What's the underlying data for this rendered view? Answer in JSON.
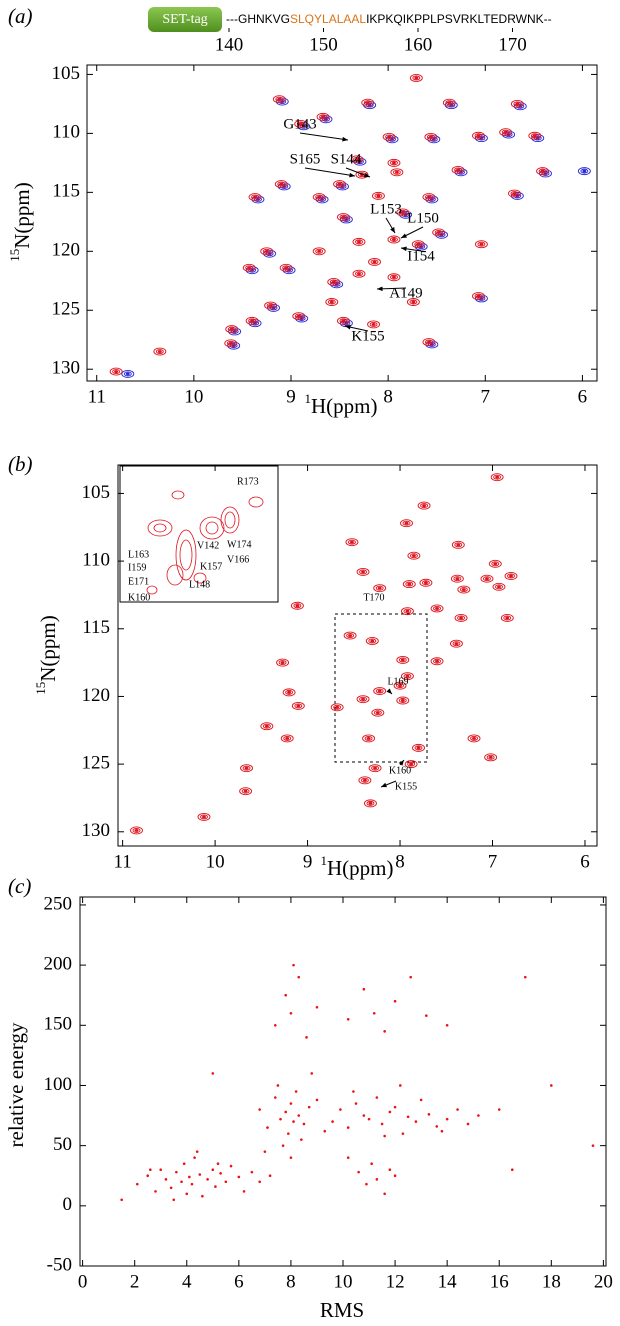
{
  "chart_data": [
    {
      "type": "spectrum",
      "panel_label": "(a)",
      "tag": "SET-tag",
      "sequence_parts": [
        "---GHNKVG",
        "SLQYLALAAL",
        "IKPKQIKPPLPSVRKLTEDRWNK--"
      ],
      "sequence_colors": [
        "#000000",
        "#d9731a",
        "#000000"
      ],
      "residue_ticks": [
        140,
        150,
        160,
        170
      ],
      "x_label_sup": "1",
      "x_label": "H(ppm)",
      "y_label_sup": "15",
      "y_label": "N(ppm)",
      "xlim": [
        11.1,
        5.85
      ],
      "ylim": [
        131.0,
        104.2
      ],
      "xticks": [
        11,
        10,
        9,
        8,
        7,
        6
      ],
      "yticks": [
        105,
        110,
        115,
        120,
        125,
        130
      ],
      "series": [
        {
          "color": "#2a2ad6",
          "x": [
            8.19,
            8.64,
            9.09,
            7.35,
            6.64,
            8.87,
            7.04,
            6.76,
            7.53,
            7.96,
            6.46,
            8.29,
            7.25,
            6.38,
            5.98,
            6.67,
            9.07,
            8.47,
            8.68,
            7.55,
            9.34,
            8.43,
            7.82,
            7.45,
            9.22,
            7.66,
            9.02,
            9.4,
            8.53,
            7.04,
            9.18,
            8.89,
            9.37,
            8.43,
            7.55,
            9.58,
            9.59,
            10.68
          ],
          "y": [
            107.6,
            108.8,
            107.3,
            107.6,
            107.7,
            109.4,
            110.4,
            110.1,
            110.5,
            110.5,
            110.4,
            112.4,
            113.3,
            113.4,
            113.2,
            115.3,
            114.5,
            114.5,
            115.6,
            115.6,
            115.6,
            117.3,
            116.9,
            118.6,
            120.2,
            119.6,
            121.6,
            121.6,
            122.8,
            124.0,
            124.8,
            125.7,
            126.1,
            126.1,
            127.9,
            126.8,
            128.0,
            130.4
          ]
        },
        {
          "color": "#e0141e",
          "x": [
            7.71,
            8.21,
            8.67,
            9.12,
            7.37,
            6.67,
            8.9,
            7.07,
            6.79,
            7.56,
            7.99,
            6.49,
            7.94,
            8.32,
            8.27,
            7.91,
            7.28,
            6.41,
            6.7,
            9.1,
            8.5,
            8.71,
            8.1,
            7.58,
            9.37,
            8.46,
            7.85,
            8.3,
            7.94,
            7.48,
            7.04,
            9.25,
            8.71,
            7.69,
            8.14,
            9.05,
            9.43,
            8.3,
            7.94,
            8.56,
            7.07,
            7.74,
            9.21,
            8.58,
            8.92,
            9.4,
            8.46,
            8.15,
            7.58,
            9.61,
            9.62,
            10.35,
            10.8
          ],
          "y": [
            105.3,
            107.4,
            108.6,
            107.1,
            107.4,
            107.5,
            109.2,
            110.2,
            109.9,
            110.3,
            110.3,
            110.2,
            112.5,
            112.2,
            113.5,
            113.3,
            113.1,
            113.2,
            115.1,
            114.3,
            114.3,
            115.4,
            115.3,
            115.4,
            115.4,
            117.1,
            116.7,
            119.2,
            119.0,
            118.4,
            119.4,
            120.0,
            120.0,
            119.4,
            120.9,
            121.4,
            121.4,
            121.9,
            122.2,
            122.6,
            123.8,
            124.3,
            124.6,
            124.3,
            125.5,
            125.9,
            125.9,
            126.2,
            127.7,
            126.6,
            127.8,
            128.5,
            130.2
          ]
        }
      ],
      "annotations": [
        "G143",
        "S165",
        "S144",
        "L153",
        "L150",
        "I154",
        "A149",
        "K155"
      ]
    },
    {
      "type": "spectrum",
      "panel_label": "(b)",
      "x_label_sup": "1",
      "x_label": "H(ppm)",
      "y_label_sup": "15",
      "y_label": "N(ppm)",
      "xlim": [
        11.05,
        5.87
      ],
      "ylim": [
        131.05,
        102.9
      ],
      "xticks": [
        11,
        10,
        9,
        8,
        7,
        6
      ],
      "yticks": [
        105,
        110,
        115,
        120,
        125,
        130
      ],
      "series": [
        {
          "color": "#e0141e",
          "x": [
            6.95,
            7.74,
            7.93,
            8.52,
            7.37,
            7.85,
            6.97,
            8.4,
            7.38,
            7.72,
            7.9,
            7.06,
            6.8,
            6.93,
            7.31,
            8.22,
            9.11,
            7.6,
            6.84,
            7.34,
            7.92,
            8.54,
            8.3,
            7.39,
            7.6,
            7.97,
            9.27,
            7.92,
            9.2,
            8.22,
            8.0,
            7.97,
            8.4,
            8.24,
            8.34,
            8.68,
            9.1,
            9.44,
            9.22,
            7.2,
            7.8,
            7.02,
            7.88,
            8.27,
            9.66,
            8.38,
            9.67,
            8.32,
            10.12,
            10.85
          ],
          "y": [
            103.8,
            105.9,
            107.2,
            108.6,
            108.8,
            109.6,
            110.2,
            110.8,
            111.3,
            111.6,
            111.7,
            111.3,
            111.1,
            111.9,
            112.1,
            112.0,
            113.3,
            113.5,
            114.2,
            114.2,
            113.7,
            115.5,
            115.9,
            116.1,
            117.4,
            117.3,
            117.5,
            118.5,
            119.7,
            119.6,
            119.2,
            120.3,
            120.2,
            121.2,
            123.1,
            120.8,
            120.7,
            122.2,
            123.1,
            123.1,
            123.8,
            124.5,
            125.0,
            125.3,
            125.3,
            126.2,
            127.0,
            127.9,
            128.9,
            129.9
          ]
        }
      ],
      "annotations": [
        "T170",
        "L169",
        "K160",
        "K155"
      ],
      "inset_labels": [
        "R173",
        "L163",
        "V142",
        "W174",
        "V166",
        "I159",
        "K157",
        "E171",
        "L148",
        "K160"
      ]
    },
    {
      "type": "scatter",
      "panel_label": "(c)",
      "x_label": "RMS",
      "y_label": "relative energy",
      "xlim": [
        -0.1,
        20.1
      ],
      "ylim": [
        -50,
        256.6
      ],
      "xticks": [
        0,
        2,
        4,
        6,
        8,
        10,
        12,
        14,
        16,
        18,
        20
      ],
      "yticks": [
        -50,
        0,
        50,
        100,
        150,
        200,
        250
      ],
      "color": "#ee1111",
      "x": [
        2.1,
        2.5,
        2.8,
        3.0,
        3.2,
        3.4,
        3.6,
        3.8,
        3.9,
        4.0,
        4.1,
        4.2,
        4.3,
        4.5,
        4.6,
        4.8,
        5.0,
        5.1,
        5.3,
        5.5,
        5.7,
        6.0,
        6.2,
        6.5,
        6.8,
        3.5,
        4.4,
        5.2,
        2.6,
        7.2,
        6.8,
        7.1,
        7.4,
        7.6,
        7.8,
        7.9,
        8.0,
        8.1,
        8.2,
        8.3,
        8.5,
        8.7,
        9.0,
        9.3,
        7.5,
        8.4,
        7.0,
        8.8,
        7.7,
        8.0,
        9.6,
        9.9,
        10.2,
        10.5,
        10.8,
        11.0,
        11.3,
        11.5,
        11.8,
        12.0,
        12.3,
        12.5,
        12.8,
        13.0,
        13.3,
        13.6,
        14.0,
        14.4,
        14.8,
        15.2,
        10.4,
        11.6,
        12.2,
        13.8,
        16.0,
        7.4,
        7.8,
        8.0,
        8.3,
        8.6,
        9.0,
        10.2,
        10.8,
        11.2,
        11.6,
        12.0,
        12.6,
        13.2,
        14.0,
        8.1,
        10.6,
        10.9,
        11.1,
        11.3,
        11.6,
        12.0,
        10.2,
        11.8,
        1.5,
        5.0,
        17.0,
        18.0,
        19.6,
        16.5
      ],
      "y": [
        18,
        25,
        12,
        30,
        22,
        15,
        28,
        20,
        35,
        10,
        24,
        18,
        40,
        26,
        8,
        22,
        30,
        16,
        27,
        20,
        33,
        24,
        12,
        28,
        20,
        5,
        45,
        35,
        30,
        25,
        80,
        65,
        90,
        72,
        78,
        60,
        85,
        70,
        95,
        75,
        68,
        82,
        88,
        62,
        100,
        55,
        45,
        110,
        50,
        40,
        70,
        80,
        65,
        85,
        75,
        72,
        90,
        68,
        78,
        82,
        60,
        74,
        70,
        88,
        76,
        66,
        72,
        80,
        68,
        75,
        95,
        58,
        100,
        62,
        80,
        150,
        175,
        160,
        190,
        140,
        165,
        155,
        180,
        160,
        145,
        170,
        190,
        158,
        150,
        200,
        28,
        18,
        35,
        22,
        10,
        25,
        40,
        30,
        5,
        110,
        190,
        100,
        50,
        30
      ]
    }
  ]
}
